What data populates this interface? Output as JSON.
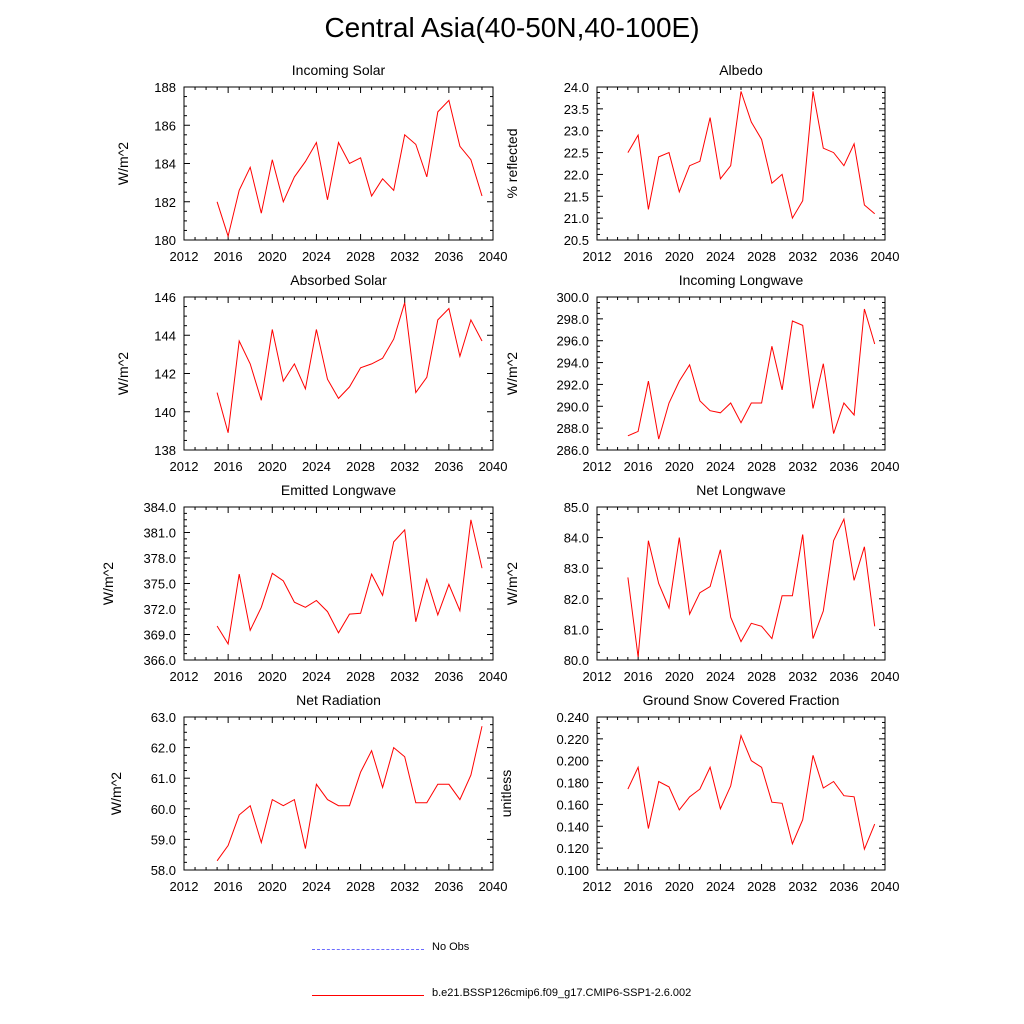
{
  "title": "Central Asia(40-50N,40-100E)",
  "colors": {
    "series": "#ff0000",
    "obs": "#6b6bff",
    "axis": "#000000"
  },
  "legend": [
    {
      "label": "No Obs",
      "style": "dashed",
      "color": "#6b6bff"
    },
    {
      "label": "b.e21.BSSP126cmip6.f09_g17.CMIP6-SSP1-2.6.002",
      "style": "solid",
      "color": "#ff0000"
    }
  ],
  "chart_data": [
    {
      "type": "line",
      "title": "Incoming Solar",
      "ylabel": "W/m^2",
      "xlabel": "",
      "xlim": [
        2012,
        2040
      ],
      "ylim": [
        180,
        188
      ],
      "xticks": [
        2012,
        2016,
        2020,
        2024,
        2028,
        2032,
        2036,
        2040
      ],
      "yticks": [
        180,
        182,
        184,
        186,
        188
      ],
      "ydecimals": 0,
      "x": [
        2015,
        2016,
        2017,
        2018,
        2019,
        2020,
        2021,
        2022,
        2023,
        2024,
        2025,
        2026,
        2027,
        2028,
        2029,
        2030,
        2031,
        2032,
        2033,
        2034,
        2035,
        2036,
        2037,
        2038,
        2039
      ],
      "series": [
        {
          "name": "b.e21.BSSP126cmip6.f09_g17.CMIP6-SSP1-2.6.002",
          "values": [
            182.0,
            180.2,
            182.6,
            183.8,
            181.4,
            184.2,
            182.0,
            183.3,
            184.1,
            185.1,
            182.1,
            185.1,
            184.0,
            184.3,
            182.3,
            183.2,
            182.6,
            185.5,
            185.0,
            183.3,
            186.7,
            187.3,
            184.9,
            184.2,
            182.3
          ]
        }
      ]
    },
    {
      "type": "line",
      "title": "Albedo",
      "ylabel": "% reflected",
      "xlabel": "",
      "xlim": [
        2012,
        2040
      ],
      "ylim": [
        20.5,
        24.0
      ],
      "xticks": [
        2012,
        2016,
        2020,
        2024,
        2028,
        2032,
        2036,
        2040
      ],
      "yticks": [
        20.5,
        21.0,
        21.5,
        22.0,
        22.5,
        23.0,
        23.5,
        24.0
      ],
      "ydecimals": 1,
      "x": [
        2015,
        2016,
        2017,
        2018,
        2019,
        2020,
        2021,
        2022,
        2023,
        2024,
        2025,
        2026,
        2027,
        2028,
        2029,
        2030,
        2031,
        2032,
        2033,
        2034,
        2035,
        2036,
        2037,
        2038,
        2039
      ],
      "series": [
        {
          "name": "b.e21.BSSP126cmip6.f09_g17.CMIP6-SSP1-2.6.002",
          "values": [
            22.5,
            22.9,
            21.2,
            22.4,
            22.5,
            21.6,
            22.2,
            22.3,
            23.3,
            21.9,
            22.2,
            23.9,
            23.2,
            22.8,
            21.8,
            22.0,
            21.0,
            21.4,
            23.9,
            22.6,
            22.5,
            22.2,
            22.7,
            21.3,
            21.1
          ]
        }
      ]
    },
    {
      "type": "line",
      "title": "Absorbed Solar",
      "ylabel": "W/m^2",
      "xlabel": "",
      "xlim": [
        2012,
        2040
      ],
      "ylim": [
        138,
        146
      ],
      "xticks": [
        2012,
        2016,
        2020,
        2024,
        2028,
        2032,
        2036,
        2040
      ],
      "yticks": [
        138,
        140,
        142,
        144,
        146
      ],
      "ydecimals": 0,
      "x": [
        2015,
        2016,
        2017,
        2018,
        2019,
        2020,
        2021,
        2022,
        2023,
        2024,
        2025,
        2026,
        2027,
        2028,
        2029,
        2030,
        2031,
        2032,
        2033,
        2034,
        2035,
        2036,
        2037,
        2038,
        2039
      ],
      "series": [
        {
          "name": "b.e21.BSSP126cmip6.f09_g17.CMIP6-SSP1-2.6.002",
          "values": [
            141.0,
            138.9,
            143.7,
            142.5,
            140.6,
            144.3,
            141.6,
            142.5,
            141.2,
            144.3,
            141.7,
            140.7,
            141.3,
            142.3,
            142.5,
            142.8,
            143.8,
            145.7,
            141.0,
            141.8,
            144.8,
            145.4,
            142.9,
            144.8,
            143.7
          ]
        }
      ]
    },
    {
      "type": "line",
      "title": "Incoming Longwave",
      "ylabel": "W/m^2",
      "xlabel": "",
      "xlim": [
        2012,
        2040
      ],
      "ylim": [
        286.0,
        300.0
      ],
      "xticks": [
        2012,
        2016,
        2020,
        2024,
        2028,
        2032,
        2036,
        2040
      ],
      "yticks": [
        286.0,
        288.0,
        290.0,
        292.0,
        294.0,
        296.0,
        298.0,
        300.0
      ],
      "ydecimals": 1,
      "x": [
        2015,
        2016,
        2017,
        2018,
        2019,
        2020,
        2021,
        2022,
        2023,
        2024,
        2025,
        2026,
        2027,
        2028,
        2029,
        2030,
        2031,
        2032,
        2033,
        2034,
        2035,
        2036,
        2037,
        2038,
        2039
      ],
      "series": [
        {
          "name": "b.e21.BSSP126cmip6.f09_g17.CMIP6-SSP1-2.6.002",
          "values": [
            287.3,
            287.7,
            292.3,
            287.0,
            290.3,
            292.3,
            293.8,
            290.5,
            289.6,
            289.4,
            290.3,
            288.5,
            290.3,
            290.3,
            295.5,
            291.5,
            297.8,
            297.4,
            289.8,
            293.9,
            287.5,
            290.3,
            289.2,
            298.9,
            295.7
          ]
        }
      ]
    },
    {
      "type": "line",
      "title": "Emitted Longwave",
      "ylabel": "W/m^2",
      "xlabel": "",
      "xlim": [
        2012,
        2040
      ],
      "ylim": [
        366.0,
        384.0
      ],
      "xticks": [
        2012,
        2016,
        2020,
        2024,
        2028,
        2032,
        2036,
        2040
      ],
      "yticks": [
        366.0,
        369.0,
        372.0,
        375.0,
        378.0,
        381.0,
        384.0
      ],
      "ydecimals": 1,
      "x": [
        2015,
        2016,
        2017,
        2018,
        2019,
        2020,
        2021,
        2022,
        2023,
        2024,
        2025,
        2026,
        2027,
        2028,
        2029,
        2030,
        2031,
        2032,
        2033,
        2034,
        2035,
        2036,
        2037,
        2038,
        2039
      ],
      "series": [
        {
          "name": "b.e21.BSSP126cmip6.f09_g17.CMIP6-SSP1-2.6.002",
          "values": [
            370.0,
            367.9,
            376.1,
            369.5,
            372.2,
            376.2,
            375.3,
            372.8,
            372.2,
            373.0,
            371.7,
            369.2,
            371.4,
            371.5,
            376.1,
            373.6,
            379.9,
            381.3,
            370.5,
            375.5,
            371.3,
            374.9,
            371.8,
            382.5,
            376.8
          ]
        }
      ]
    },
    {
      "type": "line",
      "title": "Net Longwave",
      "ylabel": "W/m^2",
      "xlabel": "",
      "xlim": [
        2012,
        2040
      ],
      "ylim": [
        80.0,
        85.0
      ],
      "xticks": [
        2012,
        2016,
        2020,
        2024,
        2028,
        2032,
        2036,
        2040
      ],
      "yticks": [
        80.0,
        81.0,
        82.0,
        83.0,
        84.0,
        85.0
      ],
      "ydecimals": 1,
      "x": [
        2015,
        2016,
        2017,
        2018,
        2019,
        2020,
        2021,
        2022,
        2023,
        2024,
        2025,
        2026,
        2027,
        2028,
        2029,
        2030,
        2031,
        2032,
        2033,
        2034,
        2035,
        2036,
        2037,
        2038,
        2039
      ],
      "series": [
        {
          "name": "b.e21.BSSP126cmip6.f09_g17.CMIP6-SSP1-2.6.002",
          "values": [
            82.7,
            80.1,
            83.9,
            82.5,
            81.7,
            84.0,
            81.5,
            82.2,
            82.4,
            83.6,
            81.4,
            80.6,
            81.2,
            81.1,
            80.7,
            82.1,
            82.1,
            84.1,
            80.7,
            81.6,
            83.9,
            84.6,
            82.6,
            83.7,
            81.1
          ]
        }
      ]
    },
    {
      "type": "line",
      "title": "Net Radiation",
      "ylabel": "W/m^2",
      "xlabel": "",
      "xlim": [
        2012,
        2040
      ],
      "ylim": [
        58.0,
        63.0
      ],
      "xticks": [
        2012,
        2016,
        2020,
        2024,
        2028,
        2032,
        2036,
        2040
      ],
      "yticks": [
        58.0,
        59.0,
        60.0,
        61.0,
        62.0,
        63.0
      ],
      "ydecimals": 1,
      "x": [
        2015,
        2016,
        2017,
        2018,
        2019,
        2020,
        2021,
        2022,
        2023,
        2024,
        2025,
        2026,
        2027,
        2028,
        2029,
        2030,
        2031,
        2032,
        2033,
        2034,
        2035,
        2036,
        2037,
        2038,
        2039
      ],
      "series": [
        {
          "name": "b.e21.BSSP126cmip6.f09_g17.CMIP6-SSP1-2.6.002",
          "values": [
            58.3,
            58.8,
            59.8,
            60.1,
            58.9,
            60.3,
            60.1,
            60.3,
            58.7,
            60.8,
            60.3,
            60.1,
            60.1,
            61.2,
            61.9,
            60.7,
            62.0,
            61.7,
            60.2,
            60.2,
            60.8,
            60.8,
            60.3,
            61.1,
            62.7
          ]
        }
      ]
    },
    {
      "type": "line",
      "title": "Ground Snow Covered Fraction",
      "ylabel": "unitless",
      "xlabel": "",
      "xlim": [
        2012,
        2040
      ],
      "ylim": [
        0.1,
        0.24
      ],
      "xticks": [
        2012,
        2016,
        2020,
        2024,
        2028,
        2032,
        2036,
        2040
      ],
      "yticks": [
        0.1,
        0.12,
        0.14,
        0.16,
        0.18,
        0.2,
        0.22,
        0.24
      ],
      "ydecimals": 3,
      "x": [
        2015,
        2016,
        2017,
        2018,
        2019,
        2020,
        2021,
        2022,
        2023,
        2024,
        2025,
        2026,
        2027,
        2028,
        2029,
        2030,
        2031,
        2032,
        2033,
        2034,
        2035,
        2036,
        2037,
        2038,
        2039
      ],
      "series": [
        {
          "name": "b.e21.BSSP126cmip6.f09_g17.CMIP6-SSP1-2.6.002",
          "values": [
            0.174,
            0.194,
            0.138,
            0.181,
            0.176,
            0.155,
            0.167,
            0.174,
            0.194,
            0.156,
            0.177,
            0.223,
            0.2,
            0.194,
            0.162,
            0.161,
            0.124,
            0.146,
            0.205,
            0.175,
            0.181,
            0.168,
            0.167,
            0.119,
            0.142
          ]
        }
      ]
    }
  ]
}
